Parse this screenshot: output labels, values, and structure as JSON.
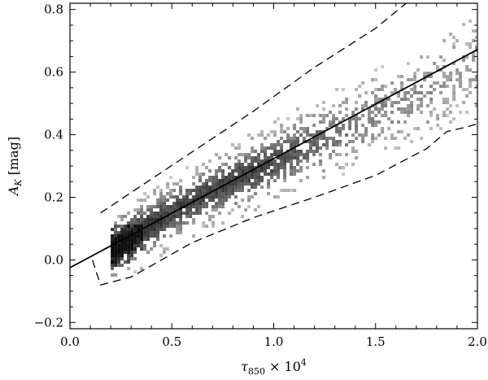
{
  "chart_data": {
    "type": "heatmap",
    "xlabel": "τ850 × 10⁴",
    "xlabel_parts": {
      "symbol": "τ",
      "sub": "850",
      "times": " × 10",
      "sup": "4"
    },
    "ylabel": "A_K [mag]",
    "ylabel_parts": {
      "symbol": "A",
      "sub": "K",
      "unit": " [mag]"
    },
    "xlim": [
      0.0,
      2.0
    ],
    "ylim": [
      -0.22,
      0.82
    ],
    "xticks": [
      0.0,
      0.5,
      1.0,
      1.5,
      2.0
    ],
    "xtick_labels": [
      "0.0",
      "0.5",
      "1.0",
      "1.5",
      "2.0"
    ],
    "yticks": [
      -0.2,
      0.0,
      0.2,
      0.4,
      0.6,
      0.8
    ],
    "ytick_labels": [
      "−0.2",
      "0.0",
      "0.2",
      "0.4",
      "0.6",
      "0.8"
    ],
    "grid": false,
    "density_ridge": {
      "description_free": true,
      "x": [
        0.22,
        0.28,
        0.35,
        0.5,
        0.7,
        0.9,
        1.1,
        1.3,
        1.5,
        1.7,
        1.9,
        2.0
      ],
      "y": [
        0.04,
        0.07,
        0.1,
        0.16,
        0.23,
        0.29,
        0.35,
        0.41,
        0.47,
        0.53,
        0.6,
        0.64
      ],
      "spread": [
        0.05,
        0.05,
        0.05,
        0.05,
        0.05,
        0.055,
        0.06,
        0.065,
        0.07,
        0.075,
        0.08,
        0.08
      ],
      "weight": [
        1.0,
        1.0,
        0.85,
        0.75,
        0.75,
        0.75,
        0.6,
        0.45,
        0.35,
        0.3,
        0.25,
        0.25
      ]
    },
    "series": [
      {
        "style": "solid",
        "x": [
          0.0,
          2.0
        ],
        "y": [
          -0.025,
          0.672
        ]
      },
      {
        "style": "dashed",
        "x": [
          0.15,
          0.3,
          0.6,
          0.9,
          1.2,
          1.5,
          1.65
        ],
        "y": [
          0.15,
          0.215,
          0.345,
          0.475,
          0.615,
          0.74,
          0.82
        ]
      },
      {
        "style": "dashed",
        "x": [
          0.11,
          0.15,
          0.3,
          0.6,
          0.9,
          1.2,
          1.5,
          1.75,
          1.85,
          1.95,
          2.0
        ],
        "y": [
          0.0,
          -0.08,
          -0.055,
          0.055,
          0.135,
          0.2,
          0.27,
          0.355,
          0.41,
          0.425,
          0.435
        ]
      }
    ]
  }
}
